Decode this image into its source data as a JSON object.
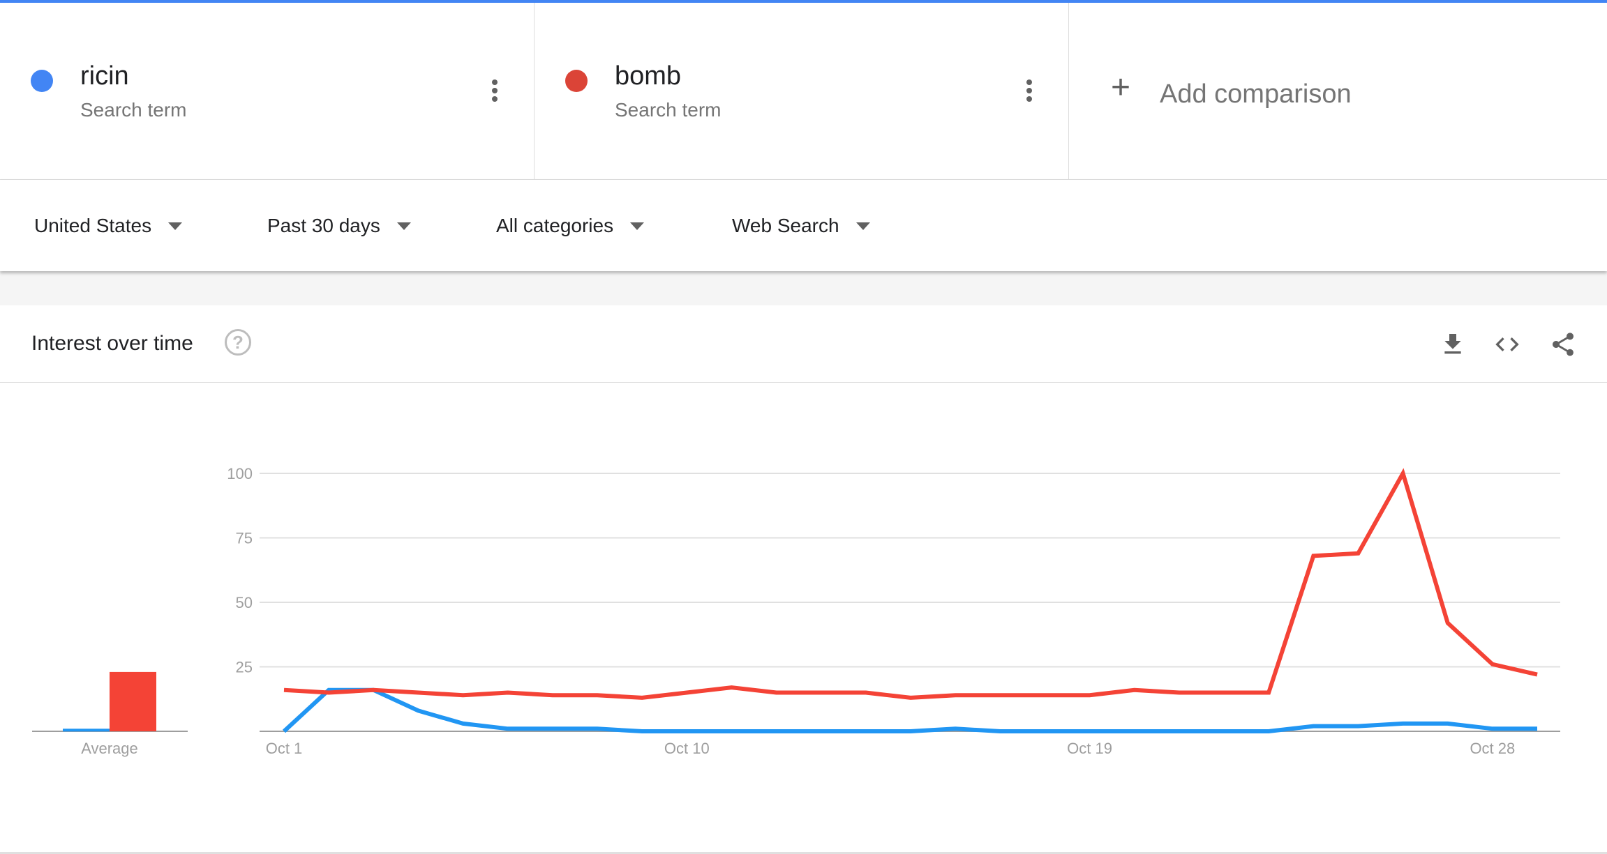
{
  "terms": [
    {
      "name": "ricin",
      "subtitle": "Search term",
      "color": "#4285f4"
    },
    {
      "name": "bomb",
      "subtitle": "Search term",
      "color": "#db4437"
    }
  ],
  "add_comparison": "Add comparison",
  "filters": {
    "region": "United States",
    "time": "Past 30 days",
    "category": "All categories",
    "search_type": "Web Search"
  },
  "card": {
    "title": "Interest over time",
    "help": "?",
    "icons": [
      "download-icon",
      "embed-icon",
      "share-icon"
    ]
  },
  "chart_data": {
    "type": "line",
    "x": [
      "Oct 1",
      "Oct 2",
      "Oct 3",
      "Oct 4",
      "Oct 5",
      "Oct 6",
      "Oct 7",
      "Oct 8",
      "Oct 9",
      "Oct 10",
      "Oct 11",
      "Oct 12",
      "Oct 13",
      "Oct 14",
      "Oct 15",
      "Oct 16",
      "Oct 17",
      "Oct 18",
      "Oct 19",
      "Oct 20",
      "Oct 21",
      "Oct 22",
      "Oct 23",
      "Oct 24",
      "Oct 25",
      "Oct 26",
      "Oct 27",
      "Oct 28",
      "Oct 29"
    ],
    "xtick_labels": [
      "Oct 1",
      "Oct 10",
      "Oct 19",
      "Oct 28"
    ],
    "ytick_labels": [
      "100",
      "75",
      "50",
      "25"
    ],
    "ylim": [
      0,
      100
    ],
    "grid": true,
    "series": [
      {
        "name": "ricin",
        "color": "#2196f3",
        "values": [
          0,
          16,
          16,
          8,
          3,
          1,
          1,
          1,
          0,
          0,
          0,
          0,
          0,
          0,
          0,
          1,
          0,
          0,
          0,
          0,
          0,
          0,
          0,
          2,
          2,
          3,
          3,
          1,
          1
        ],
        "average": 1
      },
      {
        "name": "bomb",
        "color": "#f44336",
        "values": [
          16,
          15,
          16,
          15,
          14,
          15,
          14,
          14,
          13,
          15,
          17,
          15,
          15,
          15,
          13,
          14,
          14,
          14,
          14,
          16,
          15,
          15,
          15,
          68,
          69,
          100,
          42,
          26,
          22
        ],
        "average": 23
      }
    ],
    "average_label": "Average"
  }
}
